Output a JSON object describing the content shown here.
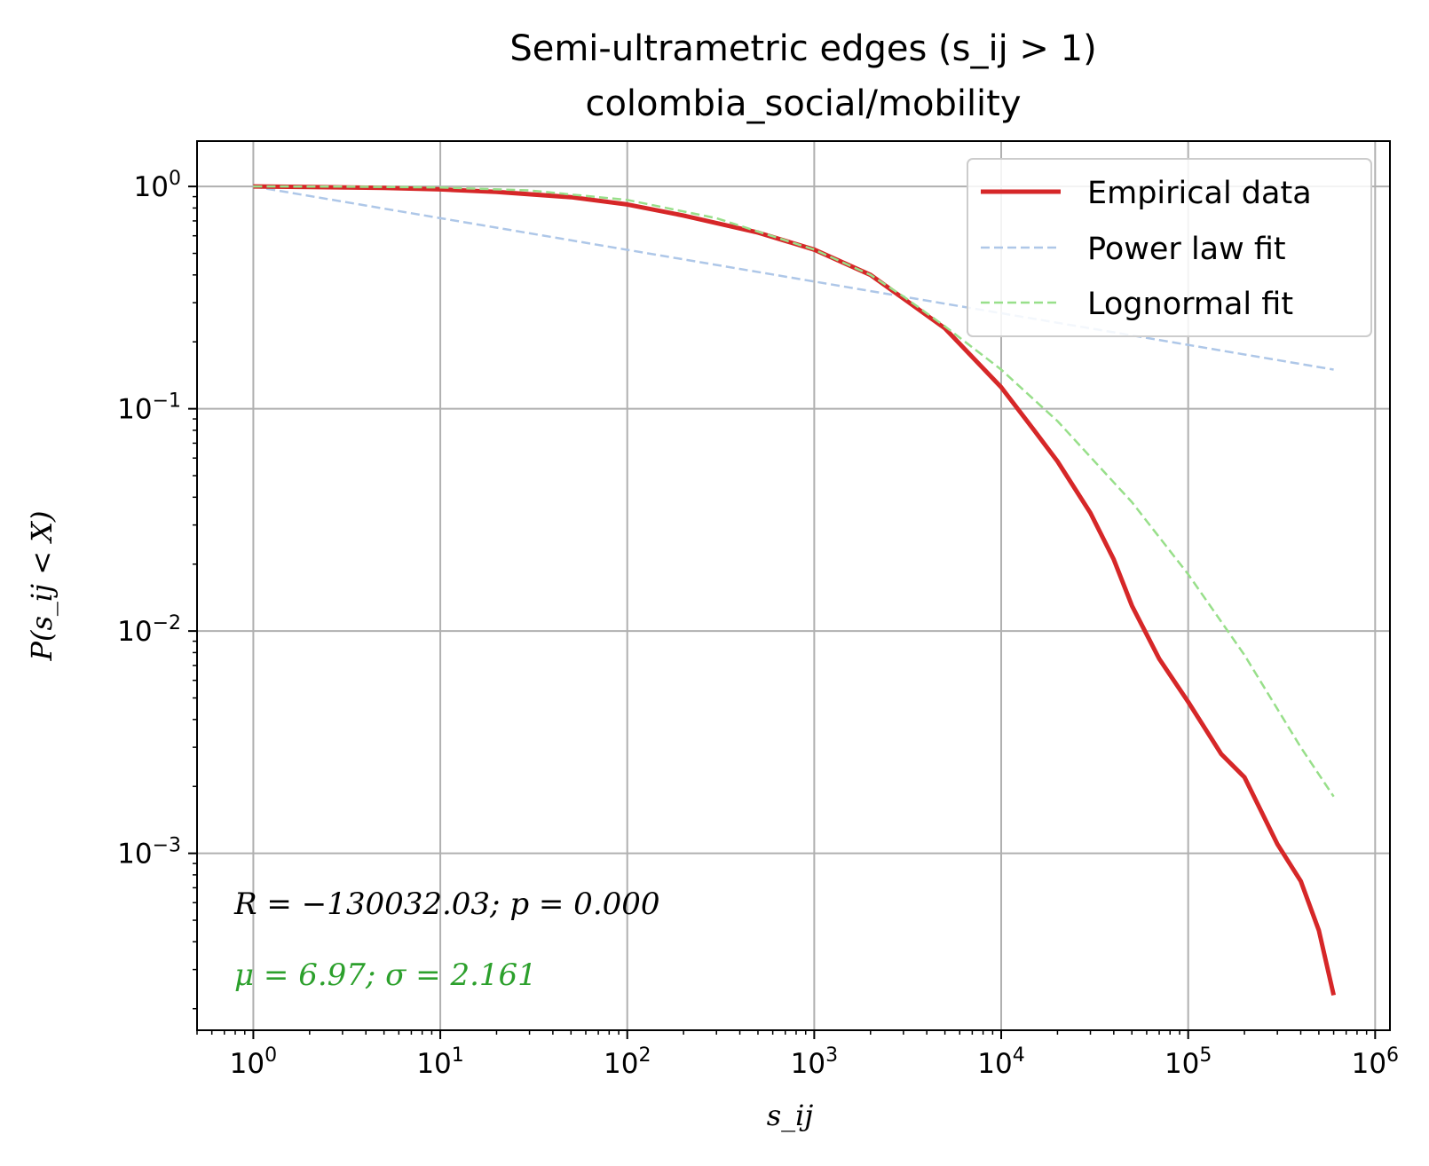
{
  "chart_data": {
    "type": "line",
    "title": "Semi-ultrametric edges (s_ij > 1)",
    "subtitle": "colombia_social/mobility",
    "xlabel": "s_ij",
    "ylabel": "P(s_ij < X)",
    "xscale": "log",
    "yscale": "log",
    "xlim": [
      0.5,
      1200000
    ],
    "ylim": [
      0.00016,
      1.6
    ],
    "x_ticks": [
      {
        "base": "10",
        "exp": "0"
      },
      {
        "base": "10",
        "exp": "1"
      },
      {
        "base": "10",
        "exp": "2"
      },
      {
        "base": "10",
        "exp": "3"
      },
      {
        "base": "10",
        "exp": "4"
      },
      {
        "base": "10",
        "exp": "5"
      },
      {
        "base": "10",
        "exp": "6"
      }
    ],
    "y_ticks": [
      {
        "base": "10",
        "exp": "0"
      },
      {
        "base": "10",
        "exp": "−1"
      },
      {
        "base": "10",
        "exp": "−2"
      },
      {
        "base": "10",
        "exp": "−3"
      }
    ],
    "grid": true,
    "legend_position": "top-right",
    "series": [
      {
        "name": "Empirical data",
        "color": "#d62728",
        "style": "solid",
        "x": [
          1,
          2,
          5,
          10,
          20,
          50,
          100,
          200,
          500,
          1000,
          2000,
          5000,
          10000,
          15000,
          20000,
          30000,
          40000,
          50000,
          70000,
          100000,
          150000,
          200000,
          300000,
          400000,
          500000,
          600000
        ],
        "y": [
          1.0,
          0.995,
          0.985,
          0.97,
          0.945,
          0.895,
          0.83,
          0.74,
          0.62,
          0.52,
          0.4,
          0.23,
          0.125,
          0.08,
          0.058,
          0.034,
          0.021,
          0.013,
          0.0075,
          0.0048,
          0.0028,
          0.0022,
          0.0011,
          0.00075,
          0.00045,
          0.00023
        ]
      },
      {
        "name": "Power law fit",
        "color": "#aec7e8",
        "style": "dashed",
        "x": [
          1,
          600000
        ],
        "y": [
          1.0,
          0.15
        ]
      },
      {
        "name": "Lognormal fit",
        "color": "#98df8a",
        "style": "dashed",
        "x": [
          1,
          3,
          10,
          30,
          100,
          300,
          1000,
          2000,
          3000,
          5000,
          10000,
          20000,
          50000,
          100000,
          200000,
          400000,
          600000
        ],
        "y": [
          1.0,
          0.998,
          0.99,
          0.96,
          0.87,
          0.72,
          0.52,
          0.4,
          0.32,
          0.235,
          0.15,
          0.088,
          0.038,
          0.018,
          0.0078,
          0.003,
          0.0018
        ]
      }
    ],
    "annotations": [
      {
        "text": "R = −130032.03; p = 0.000",
        "color": "#000000"
      },
      {
        "text": "μ = 6.97; σ = 2.161",
        "color": "#2ca02c"
      }
    ]
  }
}
